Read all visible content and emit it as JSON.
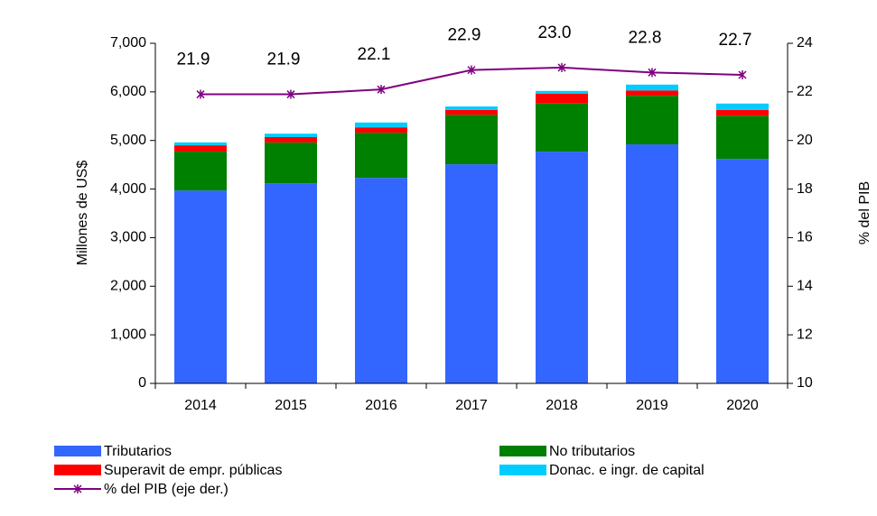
{
  "chart_data": {
    "type": "bar",
    "stacked": true,
    "categories": [
      "2014",
      "2015",
      "2016",
      "2017",
      "2018",
      "2019",
      "2020"
    ],
    "ylabel": "Millones de US$",
    "y2label": "% del PIB",
    "ylim": [
      0,
      7000
    ],
    "yticks": [
      0,
      {
        "value": 1000,
        "label": "1,000"
      },
      {
        "value": 2000,
        "label": "2,000"
      },
      {
        "value": 3000,
        "label": "3,000"
      },
      {
        "value": 4000,
        "label": "4,000"
      },
      {
        "value": 5000,
        "label": "5,000"
      },
      {
        "value": 6000,
        "label": "6,000"
      },
      {
        "value": 7000,
        "label": "7,000"
      }
    ],
    "y2lim": [
      10,
      24
    ],
    "y2ticks": [
      10,
      12,
      14,
      16,
      18,
      20,
      22,
      24
    ],
    "series": [
      {
        "name": "Tributarios",
        "color": "#3366ff",
        "values": [
          3970,
          4120,
          4230,
          4510,
          4770,
          4920,
          4620
        ]
      },
      {
        "name": "No tributarios",
        "color": "#008000",
        "values": [
          800,
          840,
          930,
          1020,
          990,
          1000,
          890
        ]
      },
      {
        "name": "Superavit de empr. públicas",
        "color": "#ff0000",
        "values": [
          130,
          110,
          110,
          100,
          200,
          110,
          120
        ]
      },
      {
        "name": "Donac. e ingr. de capital",
        "color": "#00ccff",
        "values": [
          60,
          70,
          100,
          70,
          60,
          120,
          130
        ]
      },
      {
        "name": "% del PIB (eje der.)",
        "color": "#800080",
        "type": "line",
        "axis": "y2",
        "values": [
          21.9,
          21.9,
          22.1,
          22.9,
          23.0,
          22.8,
          22.7
        ],
        "value_labels": [
          "21.9",
          "21.9",
          "22.1",
          "22.9",
          "23.0",
          "22.8",
          "22.7"
        ]
      }
    ]
  }
}
